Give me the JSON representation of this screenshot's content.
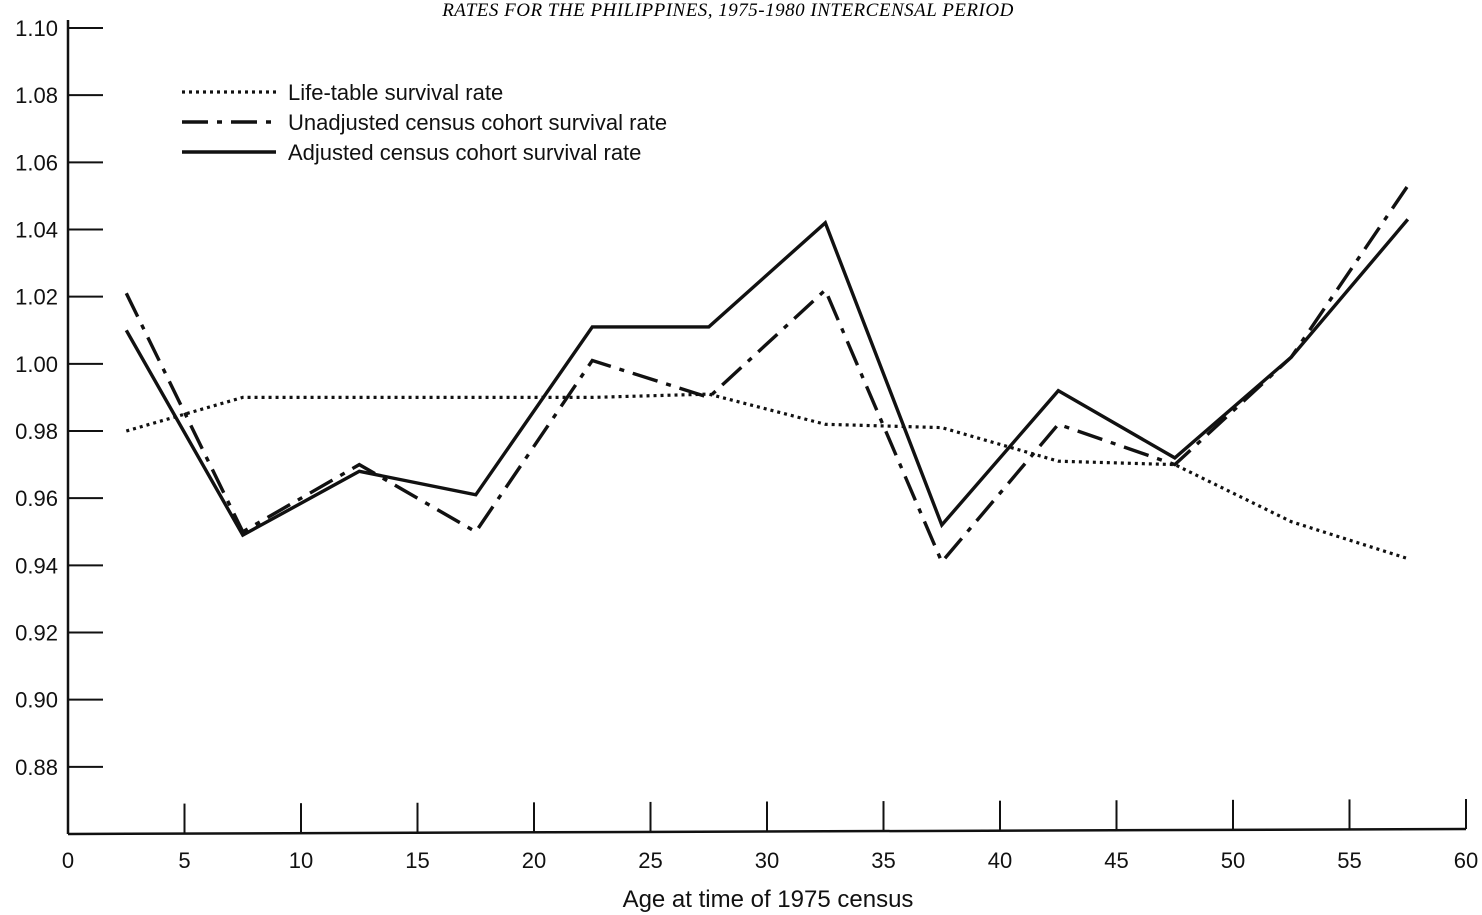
{
  "chart_data": {
    "type": "line",
    "title": "RATES FOR THE PHILIPPINES, 1975-1980 INTERCENSAL PERIOD",
    "xlabel": "Age at time of 1975 census",
    "ylabel": "",
    "xlim": [
      0,
      60
    ],
    "ylim": [
      0.86,
      1.1
    ],
    "x_ticks": [
      0,
      5,
      10,
      15,
      20,
      25,
      30,
      35,
      40,
      45,
      50,
      55,
      60
    ],
    "y_ticks": [
      "1.10",
      "1.08",
      "1.06",
      "1.04",
      "1.02",
      "1.00",
      "0.98",
      "0.96",
      "0.94",
      "0.92",
      "0.90",
      "0.88"
    ],
    "grid": false,
    "legend_position": "top-left",
    "x": [
      2.5,
      7.5,
      12.5,
      17.5,
      22.5,
      27.5,
      32.5,
      37.5,
      42.5,
      47.5,
      52.5,
      57.5
    ],
    "series": [
      {
        "name": "Life-table survival rate",
        "style": "dotted",
        "values": [
          0.98,
          0.99,
          0.99,
          0.99,
          0.99,
          0.991,
          0.982,
          0.981,
          0.971,
          0.97,
          0.953,
          0.942
        ]
      },
      {
        "name": "Unadjusted census cohort survival rate",
        "style": "dash-dot",
        "values": [
          1.021,
          0.95,
          0.97,
          0.95,
          1.001,
          0.99,
          1.022,
          0.941,
          0.982,
          0.97,
          1.002,
          1.053
        ]
      },
      {
        "name": "Adjusted census cohort survival rate",
        "style": "solid",
        "values": [
          1.01,
          0.949,
          0.968,
          0.961,
          1.011,
          1.011,
          1.042,
          0.952,
          0.992,
          0.972,
          1.002,
          1.043
        ]
      }
    ]
  }
}
